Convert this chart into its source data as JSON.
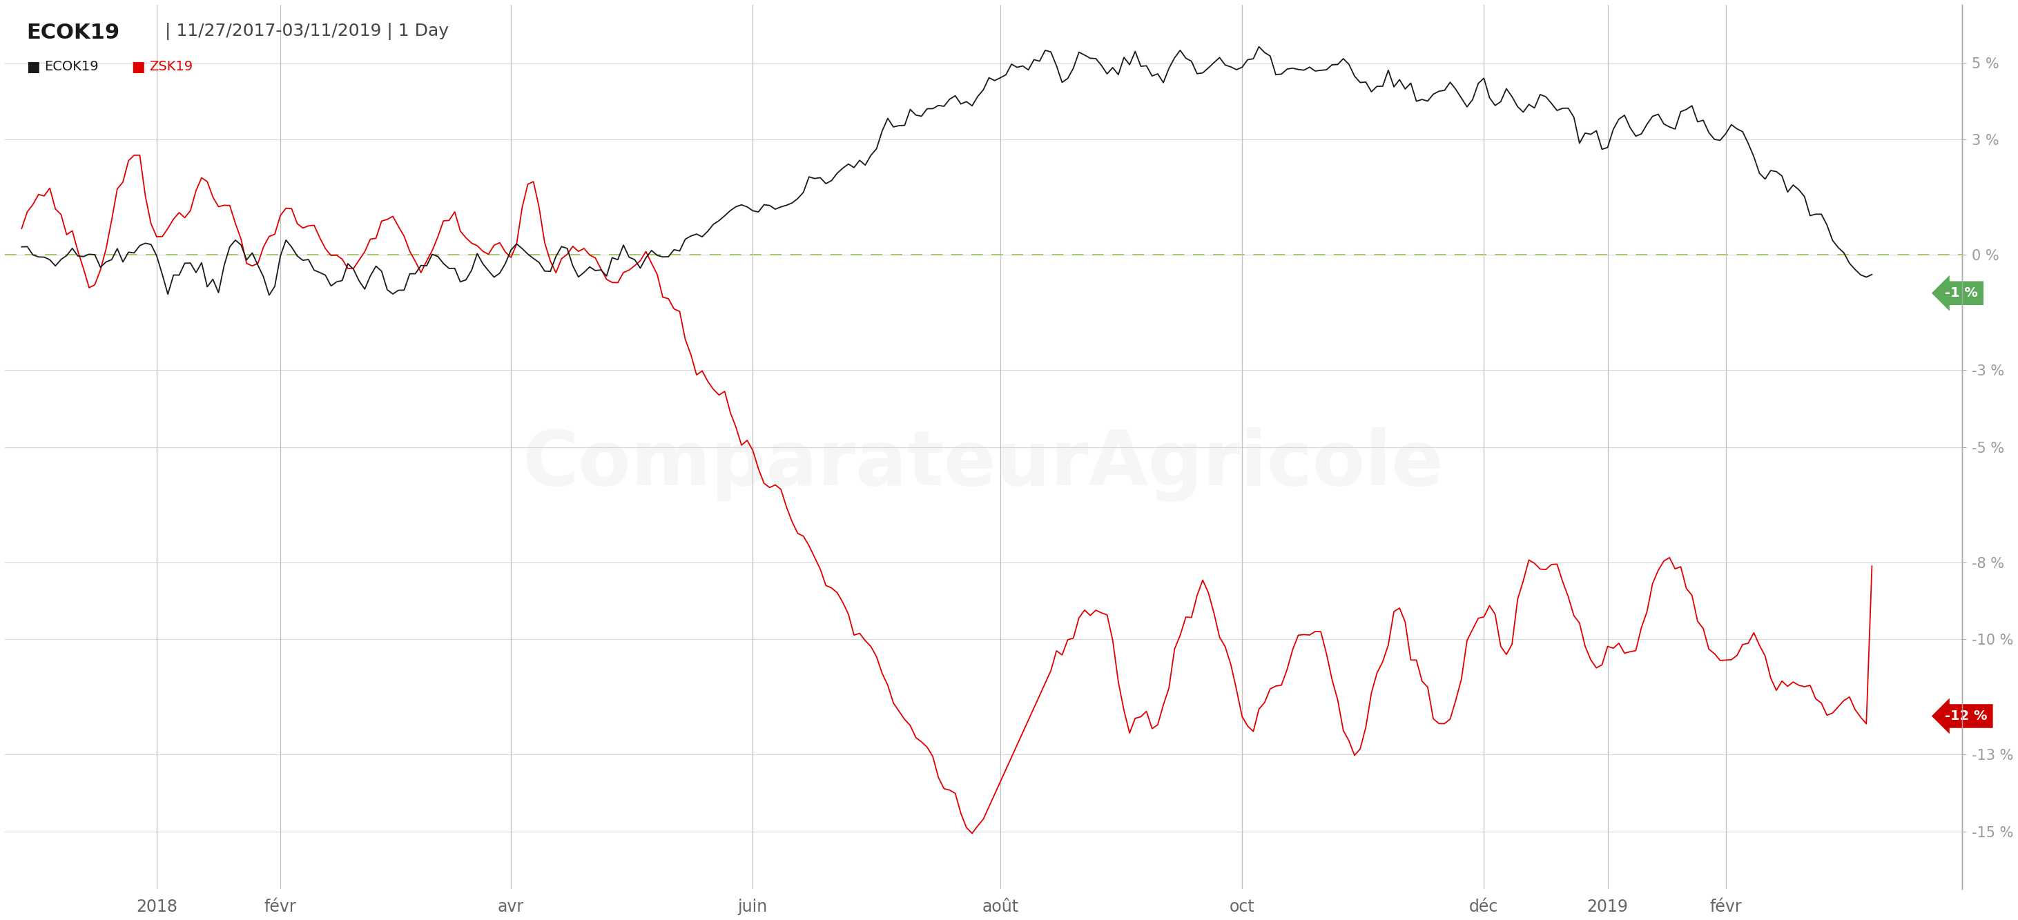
{
  "title_bold": "ECOK19",
  "title_rest": " | 11/27/2017-03/11/2019 | 1 Day",
  "legend": [
    "ECOK19",
    "ZSK19"
  ],
  "legend_colors": [
    "#1a1a1a",
    "#e00000"
  ],
  "background_color": "#ffffff",
  "grid_color": "#d8d8d8",
  "zero_line_color": "#a8c878",
  "yticks": [
    5,
    3,
    0,
    -3,
    -5,
    -8,
    -10,
    -13,
    -15
  ],
  "ylim": [
    -16.5,
    6.5
  ],
  "ecok19_last": -1,
  "zsk19_last": -12,
  "ecok19_label_color": "#5a9a5a",
  "zsk19_label_color": "#cc0000",
  "xticklabels": [
    "2018",
    "févr",
    "avr",
    "juin",
    "août",
    "oct",
    "déc",
    "2019",
    "févr"
  ],
  "vline_color": "#c0c0c0",
  "axis_right_color": "#aaaaaa",
  "watermark": "ComparateurAgricole",
  "n_points": 330
}
